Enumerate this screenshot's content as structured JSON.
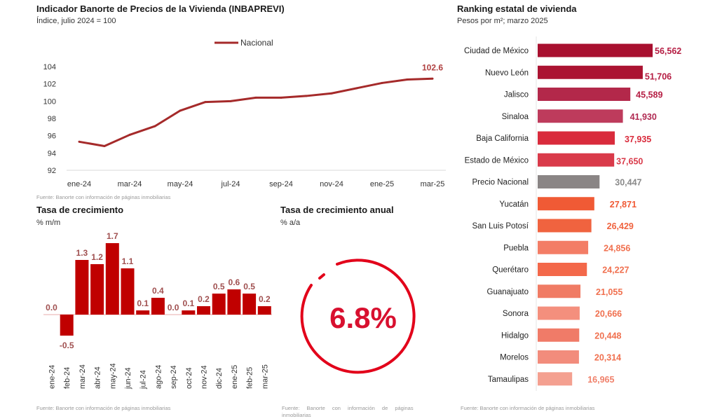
{
  "line_panel": {
    "title": "Indicador Banorte de Precios de la Vivienda (INBAPREVI)",
    "subtitle": "Índice, julio 2024 = 100",
    "source": "Fuente: Banorte con información de páginas inmobiliarias"
  },
  "bar_panel": {
    "title": "Tasa de crecimiento",
    "subtitle": "% m/m",
    "source": "Fuente: Banorte con información de páginas inmobiliarias"
  },
  "annual_panel": {
    "title": "Tasa de crecimiento anual",
    "subtitle": "% a/a",
    "value_label": "6.8%",
    "value": 6.8,
    "source_line1": "Fuente:   Banorte   con   información   de   páginas",
    "source_line2": "inmobiliarias",
    "color": "#e2001a"
  },
  "ranking_panel": {
    "title": "Ranking estatal de vivienda",
    "subtitle": "Pesos por m²; marzo 2025",
    "source": "Fuente: Banorte con información de páginas inmobiliarias"
  },
  "chart_data": [
    {
      "type": "line",
      "title": "Indicador Banorte de Precios de la Vivienda (INBAPREVI)",
      "subtitle": "Índice, julio 2024 = 100",
      "x": [
        "ene-24",
        "feb-24",
        "mar-24",
        "abr-24",
        "may-24",
        "jun-24",
        "jul-24",
        "ago-24",
        "sep-24",
        "oct-24",
        "nov-24",
        "dic-24",
        "ene-25",
        "feb-25",
        "mar-25"
      ],
      "xticks": [
        "ene-24",
        "mar-24",
        "may-24",
        "jul-24",
        "sep-24",
        "nov-24",
        "ene-25",
        "mar-25"
      ],
      "series": [
        {
          "name": "Nacional",
          "color": "#a52a2a",
          "values": [
            95.3,
            94.8,
            96.1,
            97.1,
            98.9,
            99.9,
            100.0,
            100.4,
            100.4,
            100.6,
            100.9,
            101.5,
            102.1,
            102.5,
            102.6
          ]
        }
      ],
      "yticks": [
        92,
        94,
        96,
        98,
        100,
        102,
        104
      ],
      "ylim": [
        92,
        104
      ],
      "end_label": "102.6",
      "legend": "top-right",
      "grid": false
    },
    {
      "type": "bar",
      "title": "Tasa de crecimiento",
      "ylabel": "% m/m",
      "categories": [
        "ene-24",
        "feb-24",
        "mar-24",
        "abr-24",
        "may-24",
        "jun-24",
        "jul-24",
        "ago-24",
        "sep-24",
        "oct-24",
        "nov-24",
        "dic-24",
        "ene-25",
        "feb-25",
        "mar-25"
      ],
      "values": [
        0.0,
        -0.5,
        1.3,
        1.2,
        1.7,
        1.1,
        0.1,
        0.4,
        0.0,
        0.1,
        0.2,
        0.5,
        0.6,
        0.5,
        0.2
      ],
      "labels": [
        "0.0",
        "-0.5",
        "1.3",
        "1.2",
        "1.7",
        "1.1",
        "0.1",
        "0.4",
        "0.0",
        "0.1",
        "0.2",
        "0.5",
        "0.6",
        "0.5",
        "0.2"
      ],
      "color": "#c00000",
      "label_color": "#a05050"
    },
    {
      "type": "bar",
      "orientation": "horizontal",
      "title": "Ranking estatal de vivienda",
      "subtitle": "Pesos por m²; marzo 2025",
      "categories": [
        "Ciudad de México",
        "Nuevo León",
        "Jalisco",
        "Sinaloa",
        "Baja California",
        "Estado de México",
        "Precio Nacional",
        "Yucatán",
        "San Luis Potosí",
        "Puebla",
        "Querétaro",
        "Guanajuato",
        "Sonora",
        "Hidalgo",
        "Morelos",
        "Tamaulipas"
      ],
      "values": [
        56562,
        51706,
        45589,
        41930,
        37935,
        37650,
        30447,
        27871,
        26429,
        24856,
        24227,
        21055,
        20666,
        20448,
        20314,
        16965
      ],
      "labels": [
        "56,562",
        "51,706",
        "45,589",
        "41,930",
        "37,935",
        "37,650",
        "30,447",
        "27,871",
        "26,429",
        "24,856",
        "24,227",
        "21,055",
        "20,666",
        "20,448",
        "20,314",
        "16,965"
      ],
      "colors": [
        "#a8102f",
        "#ab1332",
        "#b3284a",
        "#be3b5c",
        "#d92b3c",
        "#d93a4a",
        "#8a8585",
        "#f05a35",
        "#f0633f",
        "#f37d66",
        "#f3684a",
        "#f07b64",
        "#f48f7d",
        "#f07b68",
        "#f28c7c",
        "#f4a090"
      ],
      "label_colors": [
        "#b51d43",
        "#b51d43",
        "#b51d43",
        "#b02a52",
        "#d92b3c",
        "#d93a4a",
        "#8a8a8a",
        "#f05a35",
        "#f0633f",
        "#f0704f",
        "#f0704f",
        "#f0704f",
        "#f0704f",
        "#f0704f",
        "#f0704f",
        "#f0806a"
      ]
    }
  ]
}
